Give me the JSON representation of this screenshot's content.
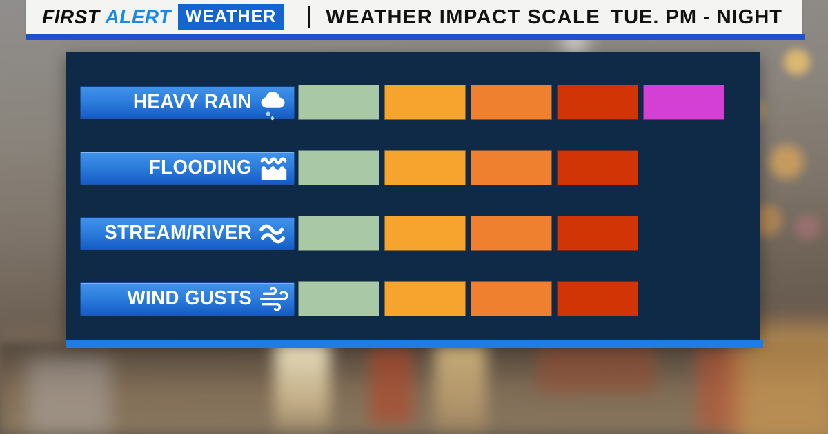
{
  "header": {
    "brand": {
      "first": "FIRST",
      "alert": "ALERT",
      "weather": "WEATHER"
    },
    "title": "WEATHER IMPACT SCALE",
    "timeframe": "TUE. PM - NIGHT"
  },
  "impact_scale": {
    "rows": [
      {
        "label": "HEAVY RAIN",
        "icon": "rain-cloud-icon",
        "cells": [
          "#a9c8a6",
          "#f6a42e",
          "#ef8030",
          "#d23505",
          "#d440d4"
        ]
      },
      {
        "label": "FLOODING",
        "icon": "flood-icon",
        "cells": [
          "#a9c8a6",
          "#f6a42e",
          "#ef8030",
          "#d23505"
        ]
      },
      {
        "label": "STREAM/RIVER",
        "icon": "river-waves-icon",
        "cells": [
          "#a9c8a6",
          "#f6a42e",
          "#ef8030",
          "#d23505"
        ]
      },
      {
        "label": "WIND GUSTS",
        "icon": "wind-icon",
        "cells": [
          "#a9c8a6",
          "#f6a42e",
          "#ef8030",
          "#d23505"
        ]
      }
    ],
    "colors": {
      "panel_background": "#0f2a47",
      "panel_accent_strip": "#1e7ce2",
      "header_underline": "#1c52cc",
      "label_pill_blue": "#2e80de",
      "brand_blue": "#1989e8",
      "brand_box_blue": "#1464d2"
    }
  },
  "chart_data": {
    "type": "heatmap",
    "title": "WEATHER IMPACT SCALE",
    "subtitle": "TUE. PM - NIGHT",
    "categories": [
      "HEAVY RAIN",
      "FLOODING",
      "STREAM/RIVER",
      "WIND GUSTS"
    ],
    "values": [
      5,
      4,
      4,
      4
    ],
    "series": [
      {
        "name": "HEAVY RAIN",
        "colors": [
          "#a9c8a6",
          "#f6a42e",
          "#ef8030",
          "#d23505",
          "#d440d4"
        ]
      },
      {
        "name": "FLOODING",
        "colors": [
          "#a9c8a6",
          "#f6a42e",
          "#ef8030",
          "#d23505"
        ]
      },
      {
        "name": "STREAM/RIVER",
        "colors": [
          "#a9c8a6",
          "#f6a42e",
          "#ef8030",
          "#d23505"
        ]
      },
      {
        "name": "WIND GUSTS",
        "colors": [
          "#a9c8a6",
          "#f6a42e",
          "#ef8030",
          "#d23505"
        ]
      }
    ],
    "palette": [
      "#a9c8a6",
      "#f6a42e",
      "#ef8030",
      "#d23505",
      "#d440d4"
    ],
    "legend_position": "none",
    "grid": false
  }
}
